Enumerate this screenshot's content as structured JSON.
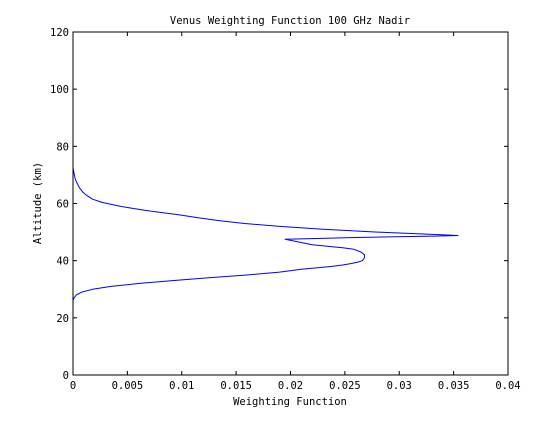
{
  "chart_data": {
    "type": "line",
    "title": "Venus Weighting Function 100 GHz Nadir",
    "xlabel": "Weighting Function",
    "ylabel": "Altitude (km)",
    "xlim": [
      0,
      0.04
    ],
    "ylim": [
      0,
      120
    ],
    "x_ticks": [
      0,
      0.005,
      0.01,
      0.015,
      0.02,
      0.025,
      0.03,
      0.035,
      0.04
    ],
    "x_tick_labels": [
      "0",
      "0.005",
      "0.01",
      "0.015",
      "0.02",
      "0.025",
      "0.03",
      "0.035",
      "0.04"
    ],
    "y_ticks": [
      0,
      20,
      40,
      60,
      80,
      100,
      120
    ],
    "y_tick_labels": [
      "0",
      "20",
      "40",
      "60",
      "80",
      "100",
      "120"
    ],
    "grid": false,
    "line_color": "#0000ff",
    "series": [
      {
        "x": [
          0,
          0.0001,
          0.0003,
          0.0008,
          0.0018,
          0.0035,
          0.006,
          0.009,
          0.0125,
          0.016,
          0.019,
          0.021,
          0.0225,
          0.0238,
          0.0248,
          0.0256,
          0.0262,
          0.0266,
          0.0268,
          0.0268,
          0.0265,
          0.0258,
          0.0248,
          0.0235,
          0.022,
          0.0195,
          0.0215,
          0.025,
          0.029,
          0.0332,
          0.0354,
          0.0325,
          0.028,
          0.023,
          0.019,
          0.0158,
          0.0135,
          0.0115,
          0.0098,
          0.0082,
          0.0068,
          0.0055,
          0.0044,
          0.0034,
          0.0026,
          0.0018,
          0.0012,
          0.0009,
          0.0006,
          0.0004,
          0.0002,
          0.0001,
          0
        ],
        "y": [
          26,
          27,
          28,
          29,
          30,
          31,
          32,
          33,
          34,
          35,
          36,
          37,
          37.5,
          38,
          38.5,
          39,
          39.5,
          40,
          41,
          42,
          43,
          44,
          44.5,
          45,
          45.6,
          47.5,
          47.7,
          48,
          48.3,
          48.6,
          48.8,
          49.3,
          50,
          51,
          52,
          53,
          54,
          55,
          56,
          56.8,
          57.5,
          58.3,
          59,
          59.8,
          60.5,
          61.5,
          63,
          64,
          65.5,
          67,
          68.5,
          70.5,
          72.5
        ]
      }
    ]
  }
}
